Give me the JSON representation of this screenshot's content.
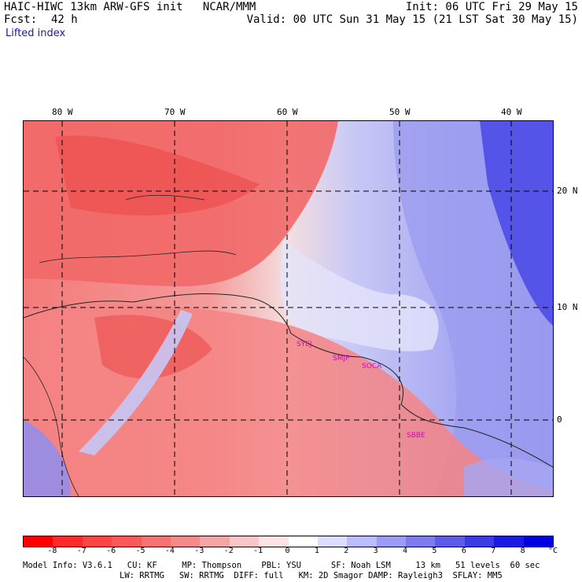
{
  "header": {
    "title": "HAIC-HIWC 13km ARW-GFS init   NCAR/MMM",
    "init": "Init: 06 UTC Fri 29 May 15",
    "fcst_label": "Fcst:",
    "fcst_value": "42 h",
    "valid": "Valid: 00 UTC Sun 31 May 15 (21 LST Sat 30 May 15)",
    "field": "Lifted index"
  },
  "map": {
    "lon_labels": [
      "80 W",
      "70 W",
      "60 W",
      "50 W",
      "40 W"
    ],
    "lat_labels": [
      "20 N",
      "10 N",
      "0"
    ],
    "stations": [
      "SYEJ",
      "SMJP",
      "SOCA",
      "SBBE"
    ]
  },
  "colorbar": {
    "labels": [
      "-8",
      "-7",
      "-6",
      "-5",
      "-4",
      "-3",
      "-2",
      "-1",
      "0",
      "1",
      "2",
      "3",
      "4",
      "5",
      "6",
      "7",
      "8"
    ],
    "unit": "°C",
    "colors": [
      "#ff0000",
      "#ff2a2a",
      "#ff4545",
      "#fc5a5a",
      "#f87272",
      "#f48a8a",
      "#f4a6a6",
      "#f8c6c6",
      "#fde4e4",
      "#ffffff",
      "#dcdcff",
      "#bcbcfa",
      "#9c9cf4",
      "#7c7cee",
      "#5c5ce8",
      "#3c3ce6",
      "#1a1ae4",
      "#0000e0"
    ]
  },
  "footer": {
    "line1": "Model Info: V3.6.1   CU: KF     MP: Thompson    PBL: YSU      SF: Noah LSM     13 km   51 levels  60 sec",
    "line2": "LW: RRTMG   SW: RRTMG  DIFF: full   KM: 2D Smagor DAMP: Rayleigh3  SFLAY: MM5"
  }
}
